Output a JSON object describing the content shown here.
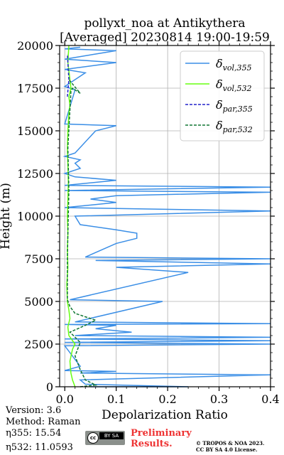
{
  "chart_data": {
    "type": "line",
    "title": "pollyxt_noa at Antikythera",
    "subtitle": "[Averaged] 20230814 19:00-19:59",
    "xlabel": "Depolarization Ratio",
    "ylabel": "Height (m)",
    "xlim": [
      -0.01,
      0.4
    ],
    "ylim": [
      0,
      20000
    ],
    "xticks": [
      "0.0",
      "0.1",
      "0.2",
      "0.3",
      "0.4"
    ],
    "yticks": [
      "0",
      "2500",
      "5000",
      "7500",
      "10000",
      "12500",
      "15000",
      "17500",
      "20000"
    ],
    "grid": true,
    "legend_position": "top-right",
    "series": [
      {
        "name": "δvol,355",
        "legend_label": "δ",
        "legend_sub": "vol,355",
        "color": "#3a8ee6",
        "style": "solid",
        "points": [
          [
            0.05,
            0
          ],
          [
            0.24,
            0
          ],
          [
            0.04,
            150
          ],
          [
            0.03,
            400
          ],
          [
            0.4,
            700
          ],
          [
            0.03,
            800
          ],
          [
            0.1,
            900
          ],
          [
            0.0,
            950
          ],
          [
            0.03,
            1200
          ],
          [
            0.0,
            2400
          ],
          [
            0.4,
            2500
          ],
          [
            0.0,
            2600
          ],
          [
            0.4,
            2700
          ],
          [
            0.0,
            2800
          ],
          [
            0.4,
            2900
          ],
          [
            0.02,
            3000
          ],
          [
            0.13,
            3200
          ],
          [
            0.06,
            3400
          ],
          [
            0.1,
            3600
          ],
          [
            0.0,
            3650
          ],
          [
            0.4,
            3700
          ],
          [
            0.02,
            3800
          ],
          [
            0.19,
            5000
          ],
          [
            0.01,
            5100
          ],
          [
            0.24,
            6700
          ],
          [
            0.1,
            7000
          ],
          [
            0.4,
            7200
          ],
          [
            0.06,
            7400
          ],
          [
            0.4,
            7500
          ],
          [
            0.04,
            7600
          ],
          [
            0.1,
            8400
          ],
          [
            0.14,
            8700
          ],
          [
            0.14,
            9000
          ],
          [
            0.1,
            9200
          ],
          [
            0.03,
            9500
          ],
          [
            0.02,
            10000
          ],
          [
            0.4,
            10300
          ],
          [
            0.0,
            10500
          ],
          [
            0.1,
            10800
          ],
          [
            0.05,
            11000
          ],
          [
            0.1,
            11200
          ],
          [
            0.4,
            11400
          ],
          [
            0.0,
            11500
          ],
          [
            0.4,
            11700
          ],
          [
            0.0,
            11800
          ],
          [
            0.1,
            12100
          ],
          [
            0.02,
            12300
          ],
          [
            0.0,
            12500
          ],
          [
            0.03,
            12800
          ],
          [
            0.02,
            13100
          ],
          [
            0.03,
            13300
          ],
          [
            0.0,
            13500
          ],
          [
            0.02,
            13700
          ],
          [
            0.06,
            15000
          ],
          [
            0.1,
            15300
          ],
          [
            0.0,
            15400
          ],
          [
            0.02,
            17400
          ],
          [
            0.0,
            17600
          ],
          [
            0.02,
            18000
          ],
          [
            0.04,
            18400
          ],
          [
            0.0,
            18600
          ],
          [
            0.1,
            19000
          ],
          [
            0.0,
            19200
          ],
          [
            0.06,
            19500
          ],
          [
            0.1,
            19700
          ],
          [
            0.0,
            19800
          ],
          [
            0.03,
            19900
          ]
        ]
      },
      {
        "name": "δvol,532",
        "legend_label": "δ",
        "legend_sub": "vol,532",
        "color": "#66ff11",
        "style": "solid",
        "points": [
          [
            0.02,
            0
          ],
          [
            0.015,
            400
          ],
          [
            0.012,
            800
          ],
          [
            0.01,
            1500
          ],
          [
            0.015,
            2200
          ],
          [
            0.02,
            2500
          ],
          [
            0.008,
            3000
          ],
          [
            0.006,
            3500
          ],
          [
            0.01,
            4000
          ],
          [
            0.008,
            4500
          ],
          [
            0.005,
            5000
          ],
          [
            0.004,
            6000
          ],
          [
            0.006,
            7000
          ],
          [
            0.005,
            8000
          ],
          [
            0.006,
            9000
          ],
          [
            0.005,
            10000
          ],
          [
            0.006,
            11000
          ],
          [
            0.007,
            12000
          ],
          [
            0.006,
            13000
          ],
          [
            0.005,
            14000
          ],
          [
            0.006,
            15000
          ],
          [
            0.008,
            16000
          ],
          [
            0.01,
            16500
          ],
          [
            0.008,
            17000
          ],
          [
            0.012,
            17500
          ],
          [
            0.01,
            18000
          ],
          [
            0.006,
            19000
          ],
          [
            0.008,
            20000
          ]
        ]
      },
      {
        "name": "δpar,355",
        "legend_label": "δ",
        "legend_sub": "par,355",
        "color": "#2222cc",
        "style": "dashed",
        "points": [
          [
            0.005,
            17000
          ],
          [
            0.008,
            18000
          ],
          [
            0.005,
            19500
          ]
        ]
      },
      {
        "name": "δpar,532",
        "legend_label": "δ",
        "legend_sub": "par,532",
        "color": "#117733",
        "style": "dashed",
        "points": [
          [
            0.03,
            0
          ],
          [
            0.06,
            100
          ],
          [
            0.04,
            400
          ],
          [
            0.03,
            1000
          ],
          [
            0.02,
            1800
          ],
          [
            0.03,
            2600
          ],
          [
            0.01,
            3200
          ],
          [
            0.04,
            3600
          ],
          [
            0.06,
            3900
          ],
          [
            0.02,
            4300
          ],
          [
            0.01,
            4700
          ],
          [
            0.005,
            5100
          ],
          [
            0.005,
            6000
          ],
          [
            0.005,
            7500
          ],
          [
            0.006,
            9000
          ],
          [
            0.008,
            11500
          ],
          [
            0.006,
            14000
          ],
          [
            0.012,
            17300
          ],
          [
            0.015,
            17500
          ],
          [
            0.03,
            17200
          ],
          [
            0.008,
            18000
          ]
        ]
      }
    ]
  },
  "info": {
    "version": "Version: 3.6",
    "method": "Method: Raman",
    "eta355_label": "η355:",
    "eta355_value": "15.54",
    "eta532_label": "η532:",
    "eta532_value": "11.0593"
  },
  "license": {
    "cc_text": "cc",
    "badge_text": "BY SA",
    "preliminary_line1": "Preliminary",
    "preliminary_line2": "Results.",
    "credit_line1": "© TROPOS & NOA 2023.",
    "credit_line2": "CC BY SA 4.0 License."
  }
}
